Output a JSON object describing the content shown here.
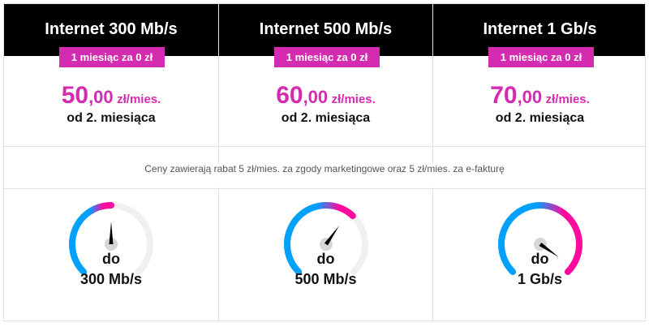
{
  "plans": [
    {
      "title": "Internet 300 Mb/s",
      "badge": "1 miesiąc za 0 zł",
      "price_int": "50",
      "price_dec": ",00",
      "price_unit": "zł/mies.",
      "from": "od 2. miesiąca",
      "do": "do",
      "speed": "300 Mb/s",
      "gauge_fill": 0.5
    },
    {
      "title": "Internet 500 Mb/s",
      "badge": "1 miesiąc za 0 zł",
      "price_int": "60",
      "price_dec": ",00",
      "price_unit": "zł/mies.",
      "from": "od 2. miesiąca",
      "do": "do",
      "speed": "500 Mb/s",
      "gauge_fill": 0.66
    },
    {
      "title": "Internet 1 Gb/s",
      "badge": "1 miesiąc za 0 zł",
      "price_int": "70",
      "price_dec": ",00",
      "price_unit": "zł/mies.",
      "from": "od 2. miesiąca",
      "do": "do",
      "speed": "1 Gb/s",
      "gauge_fill": 1.0
    }
  ],
  "note": "Ceny zawierają rabat 5 zł/mies. za zgody marketingowe oraz 5 zł/mies. za e-fakturę",
  "colors": {
    "accent": "#d52bb0",
    "gauge_start": "#00a0ff",
    "gauge_end": "#ff0a9c",
    "track": "#f0f0f0"
  }
}
